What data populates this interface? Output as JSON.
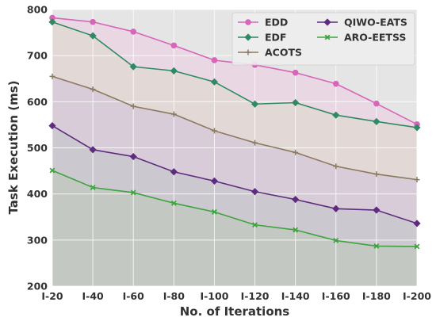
{
  "chart_data": {
    "type": "line",
    "title": "",
    "xlabel": "No. of Iterations",
    "ylabel": "Task Execution (ms)",
    "ylim": [
      200,
      800
    ],
    "yticks": [
      200,
      300,
      400,
      500,
      600,
      700,
      800
    ],
    "categories": [
      "I-20",
      "I-40",
      "I-60",
      "I-80",
      "I-100",
      "I-120",
      "I-140",
      "I-160",
      "I-180",
      "I-200"
    ],
    "grid": true,
    "legend_position": "top-right",
    "series": [
      {
        "name": "EDD",
        "color": "#d667b8",
        "marker": "circle",
        "values": [
          782,
          773,
          752,
          722,
          690,
          680,
          663,
          639,
          596,
          551
        ]
      },
      {
        "name": "EDF",
        "color": "#2f8a64",
        "marker": "diamond",
        "values": [
          773,
          743,
          676,
          667,
          643,
          595,
          598,
          571,
          557,
          544
        ]
      },
      {
        "name": "ACOTS",
        "color": "#8c7a60",
        "marker": "plus",
        "values": [
          655,
          627,
          590,
          573,
          537,
          511,
          490,
          460,
          443,
          431
        ]
      },
      {
        "name": "QIWO-EATS",
        "color": "#5e2c7e",
        "marker": "diamond",
        "values": [
          548,
          496,
          481,
          448,
          428,
          405,
          388,
          368,
          365,
          336
        ]
      },
      {
        "name": "ARO-EETSS",
        "color": "#3fa340",
        "marker": "x",
        "values": [
          451,
          414,
          403,
          380,
          361,
          333,
          322,
          299,
          287,
          286
        ]
      }
    ],
    "band_fills": [
      "#ead7e4",
      "#e2d8d5",
      "#d8ccd9",
      "#cbc8d0",
      "#c4c8c2"
    ],
    "plot_background": "#e5e5e5",
    "grid_color": "#ffffff"
  }
}
